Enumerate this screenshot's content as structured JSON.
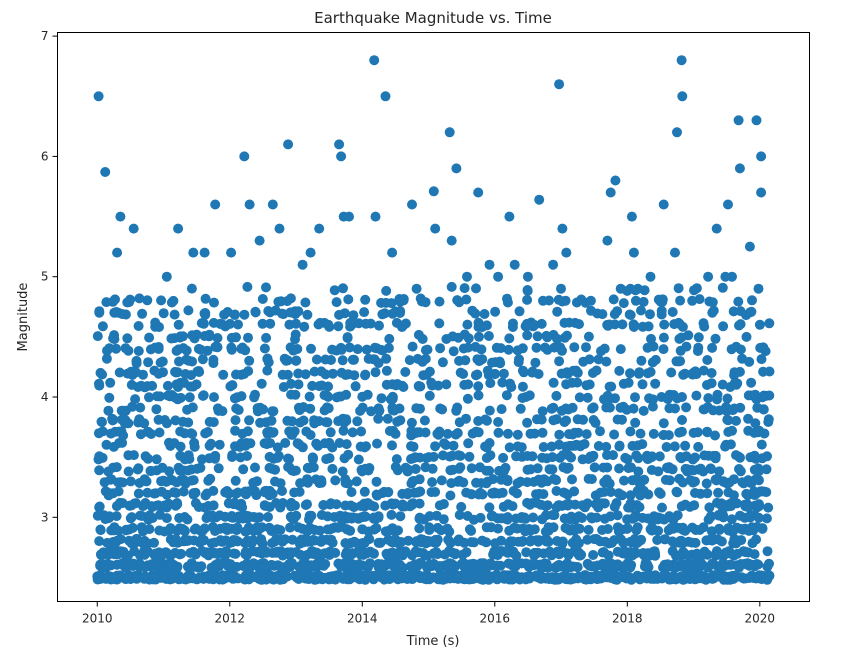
{
  "chart_data": {
    "type": "scatter",
    "title": "Earthquake Magnitude vs. Time",
    "xlabel": "Time (s)",
    "ylabel": "Magnitude",
    "xlim": [
      2009.4,
      2020.75
    ],
    "ylim": [
      2.3,
      7.03
    ],
    "x_ticks": [
      2010,
      2012,
      2014,
      2016,
      2018,
      2020
    ],
    "y_ticks": [
      3,
      4,
      5,
      6,
      7
    ],
    "grid": false,
    "legend": "none",
    "marker_color": "#1f77b4",
    "series": [
      {
        "x": [
          2010.02,
          2010.12,
          2010.35,
          2011.78,
          2012.22,
          2012.3,
          2012.65,
          2012.88,
          2013.65,
          2013.68,
          2014.18,
          2014.35,
          2014.82,
          2015.08,
          2015.32,
          2015.42,
          2015.75,
          2016.22,
          2016.67,
          2016.97,
          2017.02,
          2017.75,
          2017.82,
          2018.07,
          2018.55,
          2018.75,
          2018.82,
          2018.83,
          2019.35,
          2019.52,
          2019.68,
          2019.7,
          2019.85,
          2019.95,
          2020.02,
          2020.02,
          2011.22,
          2011.62,
          2012.02,
          2012.75,
          2013.22,
          2013.72,
          2014.2,
          2014.75,
          2015.1,
          2015.35,
          2016.05,
          2016.3,
          2016.5,
          2016.88,
          2017.08,
          2017.7,
          2018.1,
          2018.72,
          2019.48,
          2019.58,
          2010.3,
          2010.55,
          2011.05,
          2011.45,
          2012.45,
          2013.1,
          2013.35,
          2013.8,
          2014.45,
          2015.58,
          2015.92,
          2017.0,
          2017.45,
          2017.9,
          2018.35,
          2018.98,
          2019.22,
          2019.98
        ],
        "y": [
          6.5,
          5.87,
          5.5,
          5.6,
          6.0,
          5.6,
          5.6,
          6.1,
          6.1,
          6.0,
          6.8,
          6.5,
          4.9,
          5.71,
          6.2,
          5.9,
          5.7,
          5.5,
          5.64,
          6.6,
          5.4,
          5.7,
          5.8,
          5.5,
          5.6,
          6.2,
          6.8,
          6.5,
          5.4,
          5.6,
          6.3,
          5.9,
          5.25,
          6.3,
          6.0,
          5.7,
          5.4,
          5.2,
          5.2,
          5.4,
          5.2,
          5.5,
          5.5,
          5.6,
          5.4,
          5.3,
          5.0,
          5.1,
          5.0,
          5.1,
          5.2,
          5.3,
          5.2,
          5.2,
          5.0,
          5.0,
          5.2,
          5.4,
          5.0,
          5.2,
          5.3,
          5.1,
          5.4,
          5.5,
          5.2,
          5.0,
          5.1,
          4.9,
          4.8,
          4.9,
          5.0,
          4.8,
          5.0,
          4.9
        ],
        "count_background": 3200,
        "background_range": [
          2.5,
          4.9
        ]
      }
    ]
  }
}
